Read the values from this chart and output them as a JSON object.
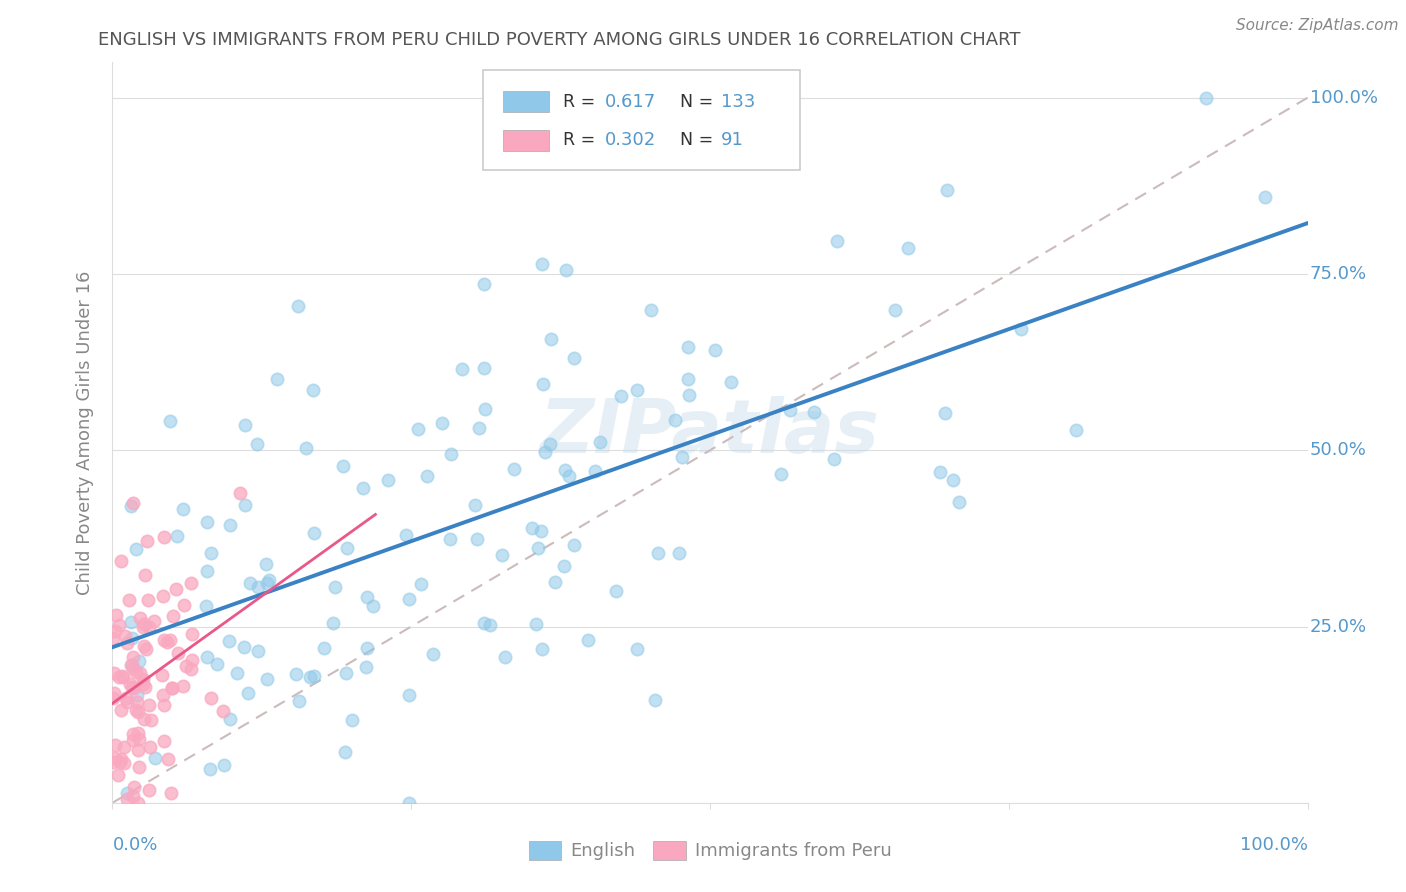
{
  "title": "ENGLISH VS IMMIGRANTS FROM PERU CHILD POVERTY AMONG GIRLS UNDER 16 CORRELATION CHART",
  "source": "Source: ZipAtlas.com",
  "ylabel": "Child Poverty Among Girls Under 16",
  "legend_english": "English",
  "legend_peru": "Immigrants from Peru",
  "r_english": 0.617,
  "n_english": 133,
  "r_peru": 0.302,
  "n_peru": 91,
  "english_color": "#8fc8e8",
  "peru_color": "#f9a8c0",
  "english_line_color": "#3a82c4",
  "peru_line_color": "#e85888",
  "watermark": "ZIPatlas",
  "background_color": "#ffffff",
  "title_color": "#555555",
  "tick_color": "#5599cc",
  "axis_label_color": "#888888",
  "grid_color": "#dddddd",
  "diag_color": "#ddaaaa",
  "legend_text_color": "#333333",
  "legend_value_color": "#5599cc"
}
